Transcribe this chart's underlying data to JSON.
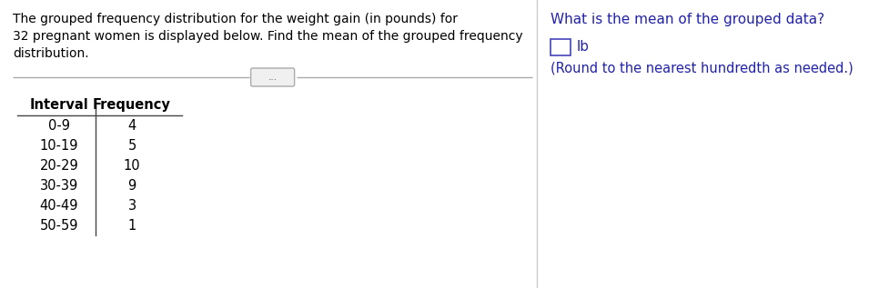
{
  "left_text_lines": [
    "The grouped frequency distribution for the weight gain (in pounds) for",
    "32 pregnant women is displayed below. Find the mean of the grouped frequency",
    "distribution."
  ],
  "divider_button_text": "...",
  "table_header": [
    "Interval",
    "Frequency"
  ],
  "table_rows": [
    [
      "0-9",
      "4"
    ],
    [
      "10-19",
      "5"
    ],
    [
      "20-29",
      "10"
    ],
    [
      "30-39",
      "9"
    ],
    [
      "40-49",
      "3"
    ],
    [
      "50-59",
      "1"
    ]
  ],
  "right_question": "What is the mean of the grouped data?",
  "right_unit": "lb",
  "right_note": "(Round to the nearest hundredth as needed.)",
  "bg_color": "#ffffff",
  "left_text_color": "#000000",
  "right_text_color": "#2222aa",
  "table_text_color": "#000000",
  "divider_color": "#aaaaaa",
  "panel_split": 0.611,
  "font_size_main": 10.0,
  "font_size_table": 10.5,
  "font_size_right": 11.0
}
